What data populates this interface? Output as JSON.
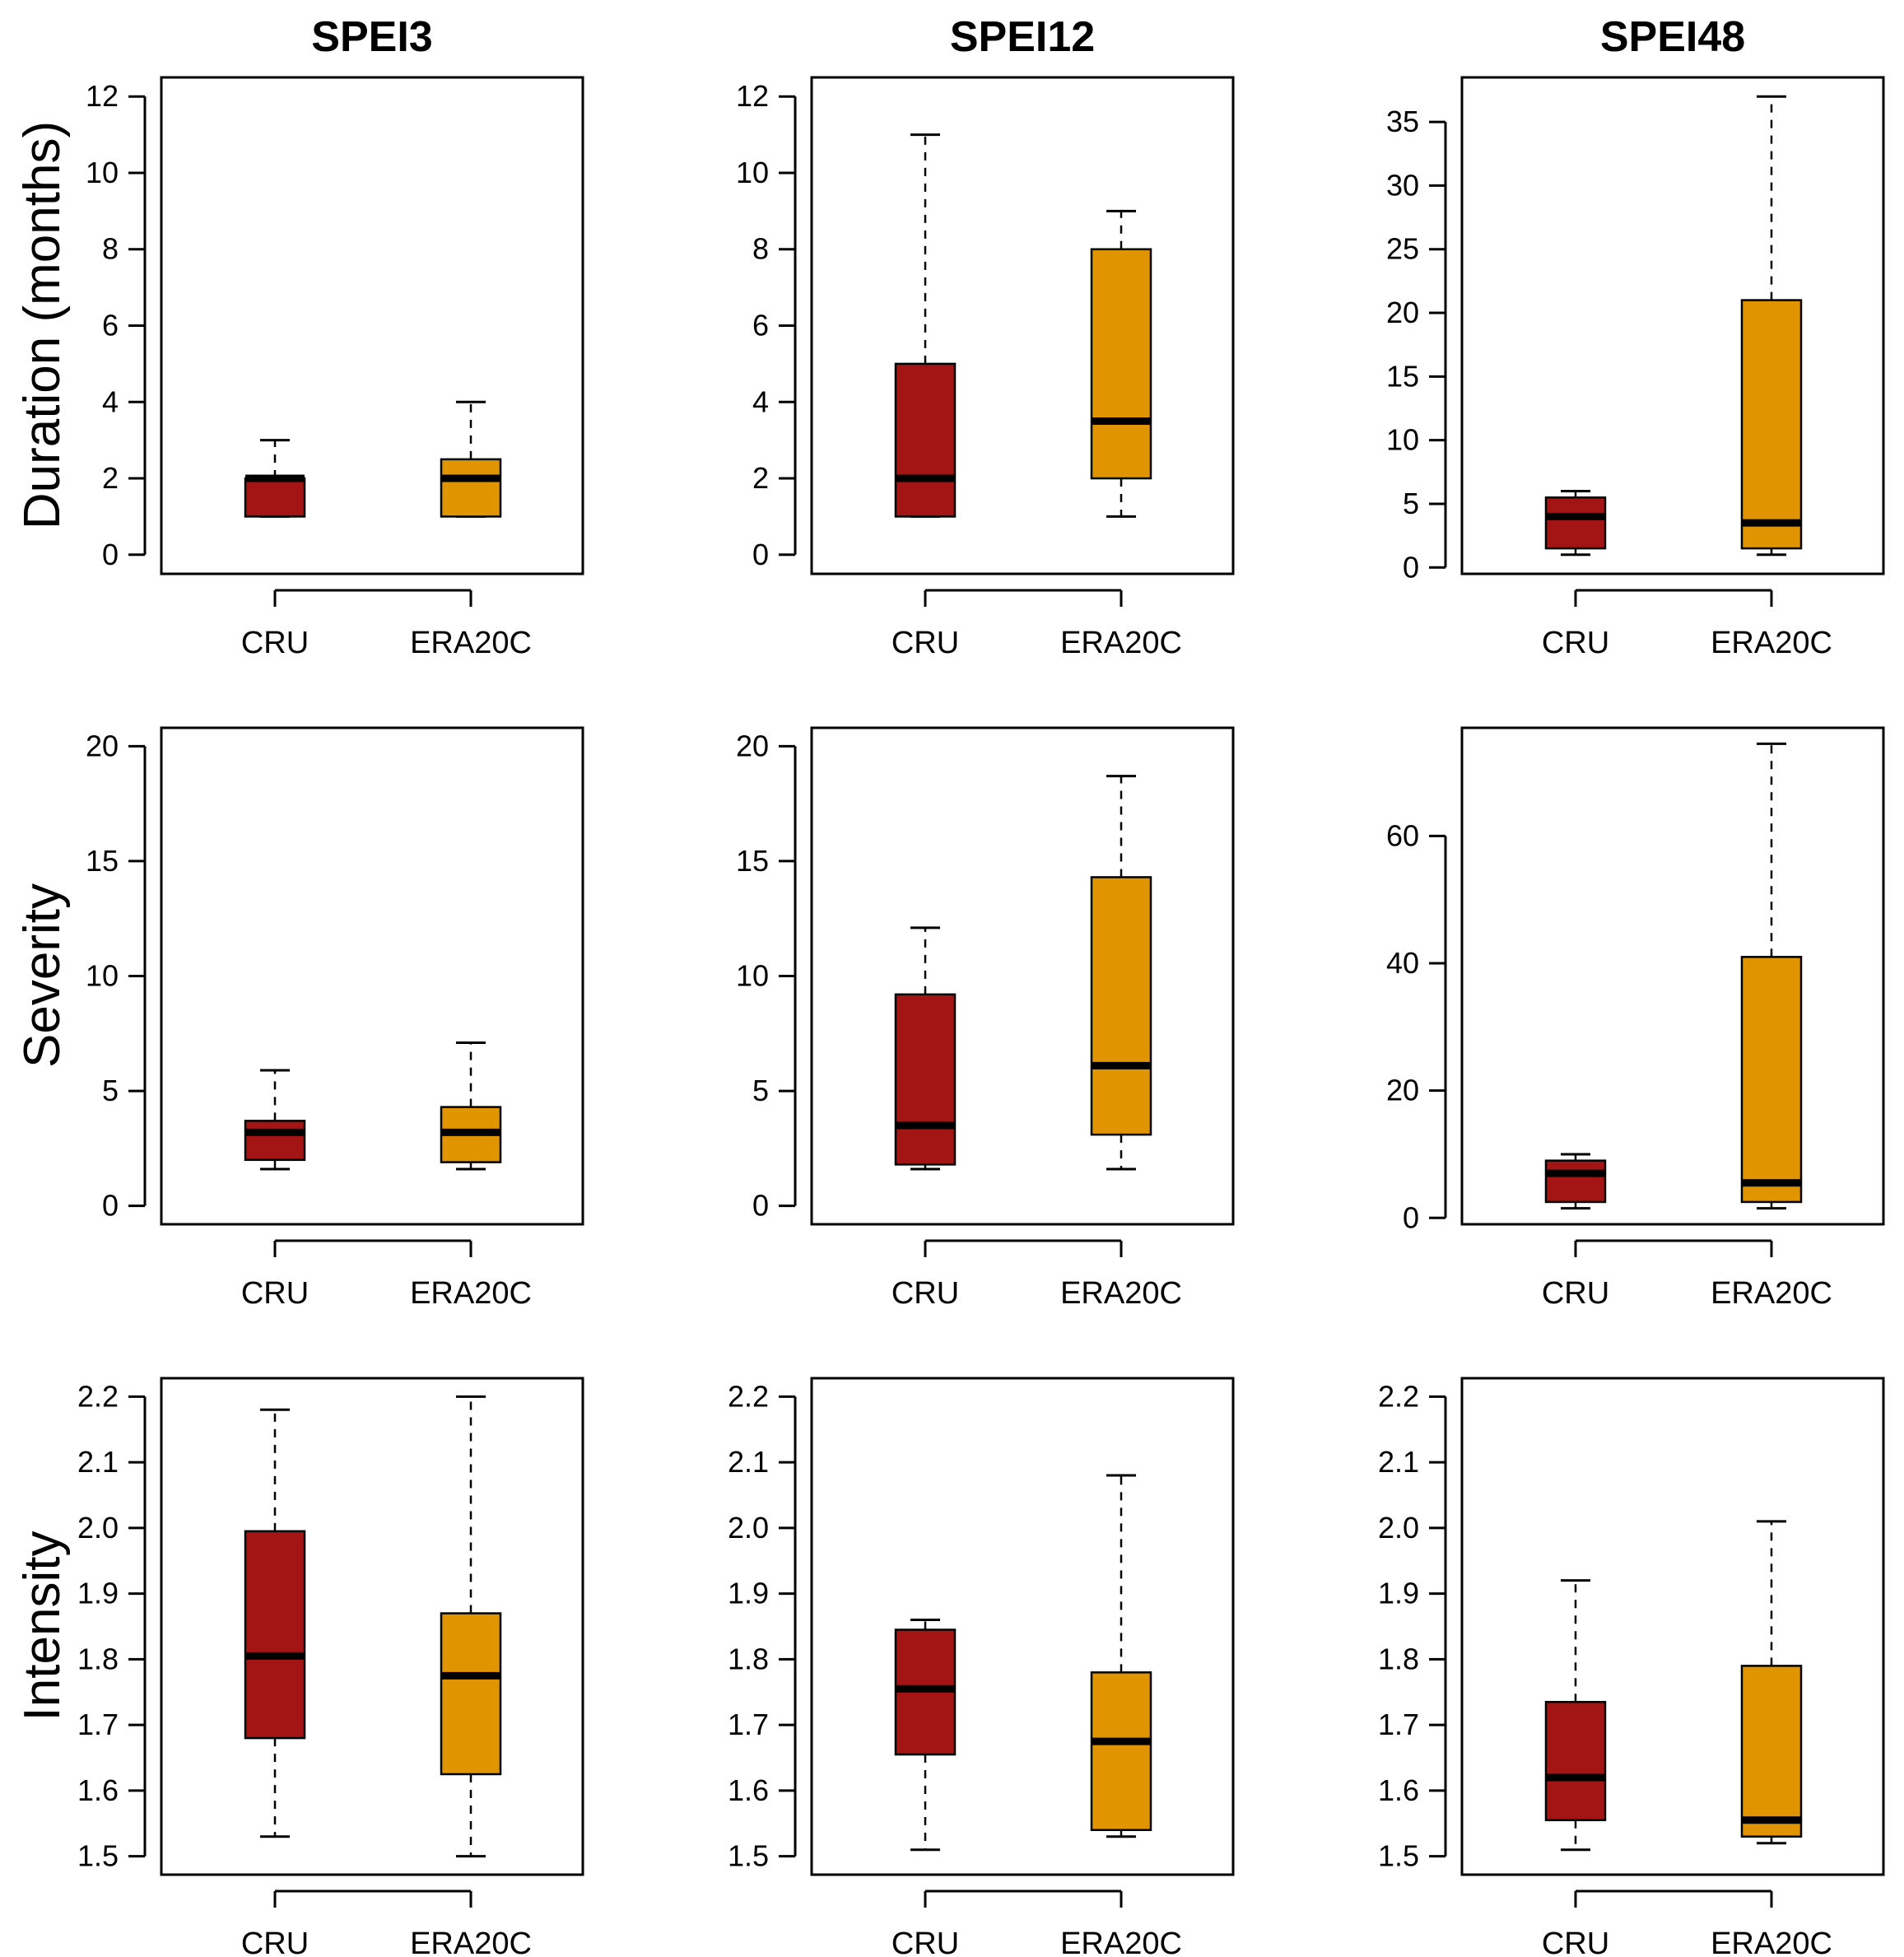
{
  "figure": {
    "column_titles": [
      "SPEI3",
      "SPEI12",
      "SPEI48"
    ],
    "row_labels": [
      "Duration (months)",
      "Severity",
      "Intensity"
    ]
  },
  "colors": {
    "CRU": "#a31515",
    "ERA20C": "#e09500",
    "median": "#000000"
  },
  "chart_data": [
    {
      "type": "boxplot",
      "row": 0,
      "col": 0,
      "title": "SPEI3",
      "ylabel": "Duration (months)",
      "ylim": [
        -0.5,
        12.5
      ],
      "yticks": [
        0,
        2,
        4,
        6,
        8,
        10,
        12
      ],
      "ytick_labels": [
        "0",
        "2",
        "4",
        "6",
        "8",
        "10",
        "12"
      ],
      "categories": [
        "CRU",
        "ERA20C"
      ],
      "boxes": [
        {
          "name": "CRU",
          "min": 1,
          "q1": 1,
          "median": 2,
          "q3": 2,
          "max": 3
        },
        {
          "name": "ERA20C",
          "min": 1,
          "q1": 1,
          "median": 2,
          "q3": 2.5,
          "max": 4
        }
      ]
    },
    {
      "type": "boxplot",
      "row": 0,
      "col": 1,
      "title": "SPEI12",
      "ylabel": "",
      "ylim": [
        -0.5,
        12.5
      ],
      "yticks": [
        0,
        2,
        4,
        6,
        8,
        10,
        12
      ],
      "ytick_labels": [
        "0",
        "2",
        "4",
        "6",
        "8",
        "10",
        "12"
      ],
      "categories": [
        "CRU",
        "ERA20C"
      ],
      "boxes": [
        {
          "name": "CRU",
          "min": 1,
          "q1": 1,
          "median": 2,
          "q3": 5,
          "max": 11
        },
        {
          "name": "ERA20C",
          "min": 1,
          "q1": 2,
          "median": 3.5,
          "q3": 8,
          "max": 9
        }
      ]
    },
    {
      "type": "boxplot",
      "row": 0,
      "col": 2,
      "title": "SPEI48",
      "ylabel": "",
      "ylim": [
        -0.5,
        38.5
      ],
      "yticks": [
        0,
        5,
        10,
        15,
        20,
        25,
        30,
        35
      ],
      "ytick_labels": [
        "0",
        "5",
        "10",
        "15",
        "20",
        "25",
        "30",
        "35"
      ],
      "categories": [
        "CRU",
        "ERA20C"
      ],
      "boxes": [
        {
          "name": "CRU",
          "min": 1,
          "q1": 1.5,
          "median": 4,
          "q3": 5.5,
          "max": 6
        },
        {
          "name": "ERA20C",
          "min": 1,
          "q1": 1.5,
          "median": 3.5,
          "q3": 21,
          "max": 37
        }
      ]
    },
    {
      "type": "boxplot",
      "row": 1,
      "col": 0,
      "title": "",
      "ylabel": "Severity",
      "ylim": [
        -0.8,
        20.8
      ],
      "yticks": [
        0,
        5,
        10,
        15,
        20
      ],
      "ytick_labels": [
        "0",
        "5",
        "10",
        "15",
        "20"
      ],
      "categories": [
        "CRU",
        "ERA20C"
      ],
      "boxes": [
        {
          "name": "CRU",
          "min": 1.6,
          "q1": 2.0,
          "median": 3.2,
          "q3": 3.7,
          "max": 5.9
        },
        {
          "name": "ERA20C",
          "min": 1.6,
          "q1": 1.9,
          "median": 3.2,
          "q3": 4.3,
          "max": 7.1
        }
      ]
    },
    {
      "type": "boxplot",
      "row": 1,
      "col": 1,
      "title": "",
      "ylabel": "",
      "ylim": [
        -0.8,
        20.8
      ],
      "yticks": [
        0,
        5,
        10,
        15,
        20
      ],
      "ytick_labels": [
        "0",
        "5",
        "10",
        "15",
        "20"
      ],
      "categories": [
        "CRU",
        "ERA20C"
      ],
      "boxes": [
        {
          "name": "CRU",
          "min": 1.6,
          "q1": 1.8,
          "median": 3.5,
          "q3": 9.2,
          "max": 12.1
        },
        {
          "name": "ERA20C",
          "min": 1.6,
          "q1": 3.1,
          "median": 6.1,
          "q3": 14.3,
          "max": 18.7
        }
      ]
    },
    {
      "type": "boxplot",
      "row": 1,
      "col": 2,
      "title": "",
      "ylabel": "",
      "ylim": [
        -1,
        77
      ],
      "yticks": [
        0,
        20,
        40,
        60
      ],
      "ytick_labels": [
        "0",
        "20",
        "40",
        "60"
      ],
      "categories": [
        "CRU",
        "ERA20C"
      ],
      "boxes": [
        {
          "name": "CRU",
          "min": 1.5,
          "q1": 2.5,
          "median": 7.0,
          "q3": 9.0,
          "max": 10.0
        },
        {
          "name": "ERA20C",
          "min": 1.5,
          "q1": 2.5,
          "median": 5.5,
          "q3": 41.0,
          "max": 74.5
        }
      ]
    },
    {
      "type": "boxplot",
      "row": 2,
      "col": 0,
      "title": "",
      "ylabel": "Intensity",
      "ylim": [
        1.472,
        2.228
      ],
      "yticks": [
        1.5,
        1.6,
        1.7,
        1.8,
        1.9,
        2.0,
        2.1,
        2.2
      ],
      "ytick_labels": [
        "1.5",
        "1.6",
        "1.7",
        "1.8",
        "1.9",
        "2.0",
        "2.1",
        "2.2"
      ],
      "categories": [
        "CRU",
        "ERA20C"
      ],
      "boxes": [
        {
          "name": "CRU",
          "min": 1.53,
          "q1": 1.68,
          "median": 1.805,
          "q3": 1.995,
          "max": 2.18
        },
        {
          "name": "ERA20C",
          "min": 1.5,
          "q1": 1.625,
          "median": 1.775,
          "q3": 1.87,
          "max": 2.2
        }
      ]
    },
    {
      "type": "boxplot",
      "row": 2,
      "col": 1,
      "title": "",
      "ylabel": "",
      "ylim": [
        1.472,
        2.228
      ],
      "yticks": [
        1.5,
        1.6,
        1.7,
        1.8,
        1.9,
        2.0,
        2.1,
        2.2
      ],
      "ytick_labels": [
        "1.5",
        "1.6",
        "1.7",
        "1.8",
        "1.9",
        "2.0",
        "2.1",
        "2.2"
      ],
      "categories": [
        "CRU",
        "ERA20C"
      ],
      "boxes": [
        {
          "name": "CRU",
          "min": 1.51,
          "q1": 1.655,
          "median": 1.755,
          "q3": 1.845,
          "max": 1.86
        },
        {
          "name": "ERA20C",
          "min": 1.53,
          "q1": 1.54,
          "median": 1.675,
          "q3": 1.78,
          "max": 2.08
        }
      ]
    },
    {
      "type": "boxplot",
      "row": 2,
      "col": 2,
      "title": "",
      "ylabel": "",
      "ylim": [
        1.472,
        2.228
      ],
      "yticks": [
        1.5,
        1.6,
        1.7,
        1.8,
        1.9,
        2.0,
        2.1,
        2.2
      ],
      "ytick_labels": [
        "1.5",
        "1.6",
        "1.7",
        "1.8",
        "1.9",
        "2.0",
        "2.1",
        "2.2"
      ],
      "categories": [
        "CRU",
        "ERA20C"
      ],
      "boxes": [
        {
          "name": "CRU",
          "min": 1.51,
          "q1": 1.555,
          "median": 1.62,
          "q3": 1.735,
          "max": 1.92
        },
        {
          "name": "ERA20C",
          "min": 1.52,
          "q1": 1.53,
          "median": 1.555,
          "q3": 1.79,
          "max": 2.01
        }
      ]
    }
  ]
}
